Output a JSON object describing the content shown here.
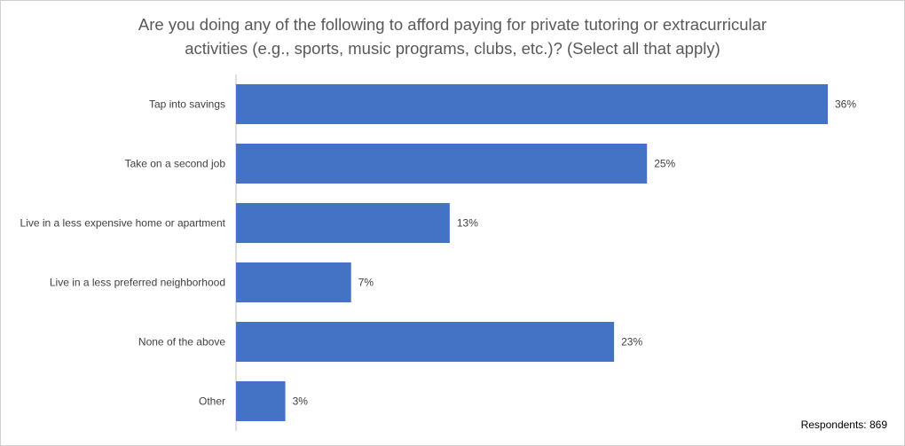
{
  "title_lines": [
    "Are you doing any of the following to afford paying for private tutoring or extracurricular",
    "activities (e.g., sports, music programs, clubs, etc.)? (Select all that apply)"
  ],
  "footnote": "Respondents: 869",
  "colors": {
    "bar": "#4472c4",
    "axis": "#bfbfbf"
  },
  "chart_data": {
    "type": "bar",
    "orientation": "horizontal",
    "title": "Are you doing any of the following to afford paying for private tutoring or extracurricular activities (e.g., sports, music programs, clubs, etc.)? (Select all that apply)",
    "categories": [
      "Tap into savings",
      "Take on a second job",
      "Live in a less expensive home or apartment",
      "Live in a less preferred neighborhood",
      "None of the above",
      "Other"
    ],
    "values": [
      36,
      25,
      13,
      7,
      23,
      3
    ],
    "value_labels": [
      "36%",
      "25%",
      "13%",
      "7%",
      "23%",
      "3%"
    ],
    "unit": "%",
    "xlim": [
      0,
      36
    ],
    "grid": false,
    "legend": "none"
  }
}
